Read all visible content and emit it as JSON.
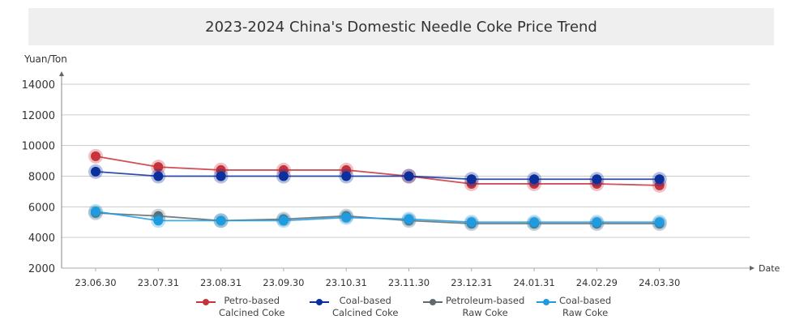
{
  "chart_data": {
    "type": "line",
    "title": "2023-2024 China's Domestic Needle Coke Price Trend",
    "xlabel": "Date",
    "ylabel": "Yuan/Ton",
    "ylim": [
      2000,
      14000
    ],
    "yticks": [
      2000,
      4000,
      6000,
      8000,
      10000,
      12000,
      14000
    ],
    "grid": true,
    "legend_position": "bottom",
    "categories": [
      "23.06.30",
      "23.07.31",
      "23.08.31",
      "23.09.30",
      "23.10.31",
      "23.11.30",
      "23.12.31",
      "24.01.31",
      "24.02.29",
      "24.03.30"
    ],
    "series": [
      {
        "name": "Petro-based Calcined Coke",
        "label_lines": [
          "Petro-based",
          "Calcined Coke"
        ],
        "color": "#c8323a",
        "values": [
          9300,
          8600,
          8400,
          8400,
          8400,
          8000,
          7500,
          7500,
          7500,
          7400
        ]
      },
      {
        "name": "Coal-based Calcined Coke",
        "label_lines": [
          "Coal-based",
          "Calcined Coke"
        ],
        "color": "#0b2f9c",
        "values": [
          8300,
          8000,
          8000,
          8000,
          8000,
          8000,
          7800,
          7800,
          7800,
          7800
        ]
      },
      {
        "name": "Petroleum-based Raw Coke",
        "label_lines": [
          "Petroleum-based",
          "Raw Coke"
        ],
        "color": "#5e6a70",
        "values": [
          5600,
          5400,
          5100,
          5200,
          5400,
          5100,
          4900,
          4900,
          4900,
          4900
        ]
      },
      {
        "name": "Coal-based Raw Coke",
        "label_lines": [
          "Coal-based",
          "Raw Coke"
        ],
        "color": "#1f9be0",
        "values": [
          5700,
          5100,
          5100,
          5100,
          5300,
          5200,
          5000,
          5000,
          5000,
          5000
        ]
      }
    ]
  }
}
